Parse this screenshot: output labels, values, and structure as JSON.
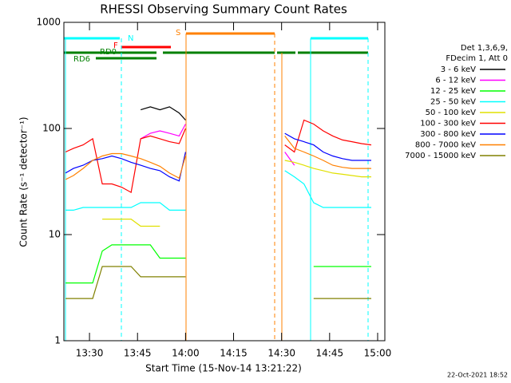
{
  "chart_data": {
    "type": "line",
    "title": "RHESSI Observing Summary Count Rates",
    "x_label": "Start Time (15-Nov-14 13:21:22)",
    "y_label": "Count Rate (s⁻¹ detector⁻¹)",
    "legend_header": [
      "Det 1,3,6,9,",
      "FDecim 1, Att 0"
    ],
    "timestamp": "22-Oct-2021 18:52",
    "annotations": [
      "N",
      "F",
      "S",
      "RD0",
      "RD6"
    ],
    "log_y": true,
    "xlim": [
      802,
      902.25
    ],
    "xticks": [
      {
        "value": 810,
        "label": "13:30"
      },
      {
        "value": 825,
        "label": "13:45"
      },
      {
        "value": 840,
        "label": "14:00"
      },
      {
        "value": 855,
        "label": "14:15"
      },
      {
        "value": 870,
        "label": "14:30"
      },
      {
        "value": 885,
        "label": "14:45"
      },
      {
        "value": 900,
        "label": "15:00"
      }
    ],
    "ylim": [
      1,
      1000
    ],
    "yticks": [
      1,
      10,
      100,
      1000
    ],
    "x": [
      802.5,
      805,
      808,
      811,
      814,
      817,
      820,
      823,
      826,
      829,
      832,
      835,
      838,
      840,
      855,
      871,
      874,
      877,
      880,
      883,
      886,
      889,
      892,
      895,
      898
    ],
    "series": [
      {
        "name": "3 - 6 keV",
        "color": "#000000",
        "values": [
          null,
          null,
          null,
          null,
          null,
          null,
          null,
          null,
          150,
          160,
          150,
          160,
          140,
          120,
          null,
          null,
          null,
          null,
          null,
          null,
          null,
          null,
          null,
          null,
          null
        ]
      },
      {
        "name": "6 - 12 keV",
        "color": "#ff00ff",
        "values": [
          null,
          null,
          null,
          null,
          null,
          null,
          null,
          null,
          80,
          90,
          95,
          90,
          85,
          110,
          null,
          60,
          45,
          null,
          null,
          null,
          null,
          null,
          null,
          null,
          null
        ]
      },
      {
        "name": "12 - 25 keV",
        "color": "#00ff00",
        "values": [
          3.5,
          3.5,
          3.5,
          3.5,
          7,
          8,
          8,
          8,
          8,
          8,
          6,
          6,
          6,
          6,
          null,
          null,
          null,
          null,
          5,
          5,
          5,
          5,
          5,
          5,
          5
        ]
      },
      {
        "name": "25 - 50 keV",
        "color": "#00ffff",
        "values": [
          17,
          17,
          18,
          18,
          18,
          18,
          18,
          18,
          20,
          20,
          20,
          17,
          17,
          17,
          null,
          40,
          35,
          30,
          20,
          18,
          18,
          18,
          18,
          18,
          18
        ]
      },
      {
        "name": "50 - 100 keV",
        "color": "#e0e000",
        "values": [
          null,
          null,
          null,
          null,
          14,
          14,
          14,
          14,
          12,
          12,
          12,
          null,
          null,
          null,
          null,
          50,
          48,
          45,
          42,
          40,
          38,
          37,
          36,
          35,
          35
        ]
      },
      {
        "name": "100 - 300 keV",
        "color": "#ff0000",
        "values": [
          60,
          65,
          70,
          80,
          30,
          30,
          28,
          25,
          80,
          85,
          80,
          75,
          72,
          100,
          null,
          70,
          60,
          120,
          110,
          95,
          85,
          78,
          75,
          72,
          70
        ]
      },
      {
        "name": "300 - 800 keV",
        "color": "#0000ff",
        "values": [
          38,
          42,
          45,
          50,
          52,
          55,
          52,
          48,
          45,
          42,
          40,
          35,
          32,
          60,
          null,
          90,
          80,
          75,
          70,
          60,
          55,
          52,
          50,
          50,
          50
        ]
      },
      {
        "name": "800 - 7000 keV",
        "color": "#ff8000",
        "values": [
          33,
          36,
          42,
          50,
          55,
          58,
          58,
          55,
          52,
          48,
          44,
          38,
          34,
          55,
          null,
          85,
          65,
          60,
          55,
          50,
          45,
          43,
          42,
          42,
          42
        ]
      },
      {
        "name": "7000 - 15000 keV",
        "color": "#808000",
        "values": [
          2.5,
          2.5,
          2.5,
          2.5,
          5,
          5,
          5,
          5,
          4,
          4,
          4,
          4,
          4,
          4,
          null,
          null,
          null,
          null,
          2.5,
          2.5,
          2.5,
          2.5,
          2.5,
          2.5,
          2.5
        ]
      }
    ]
  }
}
